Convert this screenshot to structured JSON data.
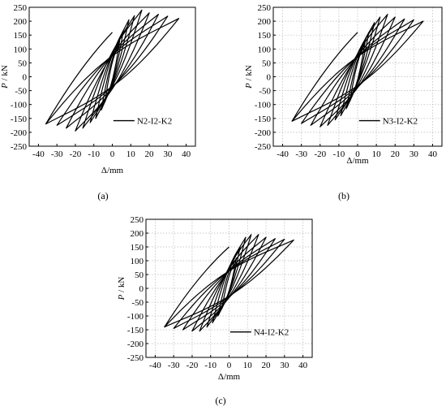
{
  "chart_data": [
    {
      "type": "line",
      "panel_label": "(a)",
      "ylabel_var": "P",
      "ylabel_unit": " / kN",
      "xlabel": "Δ/mm",
      "xlim": [
        -45,
        45
      ],
      "ylim": [
        -250,
        250
      ],
      "xticks": [
        -40,
        -30,
        -20,
        -10,
        0,
        10,
        20,
        30,
        40
      ],
      "yticks": [
        -250,
        -200,
        -150,
        -100,
        -50,
        0,
        50,
        100,
        150,
        200,
        250
      ],
      "grid": false,
      "legend_position": "lower-right",
      "series": [
        {
          "name": "N2-I2-K2",
          "loops": [
            {
              "xmax": 4,
              "pmax": 130,
              "xmin": -4,
              "pmin": -90
            },
            {
              "xmax": 6,
              "pmax": 165,
              "xmin": -6,
              "pmin": -120
            },
            {
              "xmax": 9,
              "pmax": 205,
              "xmin": -9,
              "pmin": -150
            },
            {
              "xmax": 12,
              "pmax": 220,
              "xmin": -12,
              "pmin": -165
            },
            {
              "xmax": 16,
              "pmax": 240,
              "xmin": -16,
              "pmin": -185
            },
            {
              "xmax": 20,
              "pmax": 230,
              "xmin": -20,
              "pmin": -195
            },
            {
              "xmax": 25,
              "pmax": 225,
              "xmin": -25,
              "pmin": -185
            },
            {
              "xmax": 30,
              "pmax": 218,
              "xmin": -30,
              "pmin": -175
            },
            {
              "xmax": 36,
              "pmax": 210,
              "xmin": -36,
              "pmin": -170
            }
          ],
          "unloading": {
            "x": 0,
            "p": 160
          }
        }
      ]
    },
    {
      "type": "line",
      "panel_label": "(b)",
      "ylabel_var": "P",
      "ylabel_unit": " / kN",
      "xlabel": "Δ/mm",
      "xlim": [
        -45,
        45
      ],
      "ylim": [
        -250,
        250
      ],
      "xticks": [
        -40,
        -30,
        -20,
        -10,
        0,
        10,
        20,
        30,
        40
      ],
      "yticks": [
        -250,
        -200,
        -150,
        -100,
        -50,
        0,
        50,
        100,
        150,
        200,
        250
      ],
      "grid": true,
      "legend_position": "lower-right",
      "series": [
        {
          "name": "N3-I2-K2",
          "loops": [
            {
              "xmax": 4,
              "pmax": 125,
              "xmin": -4,
              "pmin": -85
            },
            {
              "xmax": 6,
              "pmax": 160,
              "xmin": -6,
              "pmin": -115
            },
            {
              "xmax": 9,
              "pmax": 195,
              "xmin": -9,
              "pmin": -140
            },
            {
              "xmax": 12,
              "pmax": 215,
              "xmin": -12,
              "pmin": -155
            },
            {
              "xmax": 16,
              "pmax": 225,
              "xmin": -16,
              "pmin": -175
            },
            {
              "xmax": 20,
              "pmax": 215,
              "xmin": -20,
              "pmin": -180
            },
            {
              "xmax": 25,
              "pmax": 208,
              "xmin": -25,
              "pmin": -175
            },
            {
              "xmax": 30,
              "pmax": 205,
              "xmin": -30,
              "pmin": -168
            },
            {
              "xmax": 35,
              "pmax": 200,
              "xmin": -35,
              "pmin": -160
            }
          ],
          "unloading": {
            "x": 0,
            "p": 160
          }
        }
      ]
    },
    {
      "type": "line",
      "panel_label": "(c)",
      "ylabel_var": "P",
      "ylabel_unit": " / kN",
      "xlabel": "Δ/mm",
      "xlim": [
        -45,
        45
      ],
      "ylim": [
        -250,
        250
      ],
      "xticks": [
        -40,
        -30,
        -20,
        -10,
        0,
        10,
        20,
        30,
        40
      ],
      "yticks": [
        -250,
        -200,
        -150,
        -100,
        -50,
        0,
        50,
        100,
        150,
        200,
        250
      ],
      "grid": true,
      "legend_position": "lower-right",
      "series": [
        {
          "name": "N4-I2-K2",
          "loops": [
            {
              "xmax": 4,
              "pmax": 110,
              "xmin": -4,
              "pmin": -75
            },
            {
              "xmax": 6,
              "pmax": 150,
              "xmin": -6,
              "pmin": -100
            },
            {
              "xmax": 9,
              "pmax": 185,
              "xmin": -9,
              "pmin": -125
            },
            {
              "xmax": 12,
              "pmax": 195,
              "xmin": -12,
              "pmin": -140
            },
            {
              "xmax": 16,
              "pmax": 195,
              "xmin": -16,
              "pmin": -155
            },
            {
              "xmax": 20,
              "pmax": 185,
              "xmin": -20,
              "pmin": -155
            },
            {
              "xmax": 25,
              "pmax": 180,
              "xmin": -25,
              "pmin": -150
            },
            {
              "xmax": 30,
              "pmax": 178,
              "xmin": -30,
              "pmin": -145
            },
            {
              "xmax": 35,
              "pmax": 175,
              "xmin": -35,
              "pmin": -140
            }
          ],
          "unloading": {
            "x": 0,
            "p": 150
          }
        }
      ]
    }
  ]
}
